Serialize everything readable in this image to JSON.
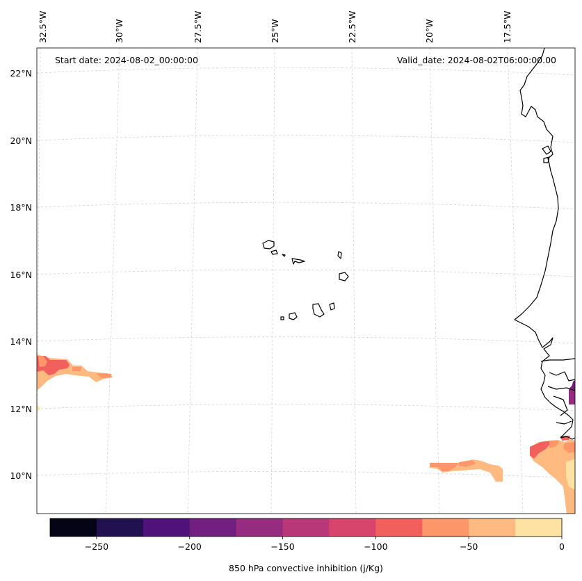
{
  "map": {
    "start_date": "Start date: 2024-08-02_00:00:00",
    "valid_date": "Valid_date: 2024-08-02T06:00:00.00",
    "lon_labels": [
      "32.5°W",
      "30°W",
      "27.5°W",
      "25°W",
      "22.5°W",
      "20°W",
      "17.5°W"
    ],
    "lat_labels": [
      "22°N",
      "20°N",
      "18°N",
      "16°N",
      "14°N",
      "12°N",
      "10°N"
    ],
    "gridlines": true,
    "coastline_color": "#000000",
    "gridline_color": "#cccccc"
  },
  "colorbar": {
    "label": "850 hPa convective inhibition (j/Kg)",
    "min": -275,
    "max": 0,
    "ticks": [
      "−250",
      "−200",
      "−150",
      "−100",
      "−50",
      "0"
    ],
    "tick_values": [
      -250,
      -200,
      -150,
      -100,
      -50,
      0
    ],
    "levels": [
      -275,
      -250,
      -225,
      -200,
      -175,
      -150,
      -125,
      -100,
      -75,
      -50,
      -25,
      0
    ],
    "colors": [
      "#050416",
      "#221150",
      "#4f127b",
      "#721f81",
      "#952c80",
      "#b73779",
      "#d8456c",
      "#f1605d",
      "#fd9668",
      "#feba80",
      "#fde2a3"
    ]
  }
}
